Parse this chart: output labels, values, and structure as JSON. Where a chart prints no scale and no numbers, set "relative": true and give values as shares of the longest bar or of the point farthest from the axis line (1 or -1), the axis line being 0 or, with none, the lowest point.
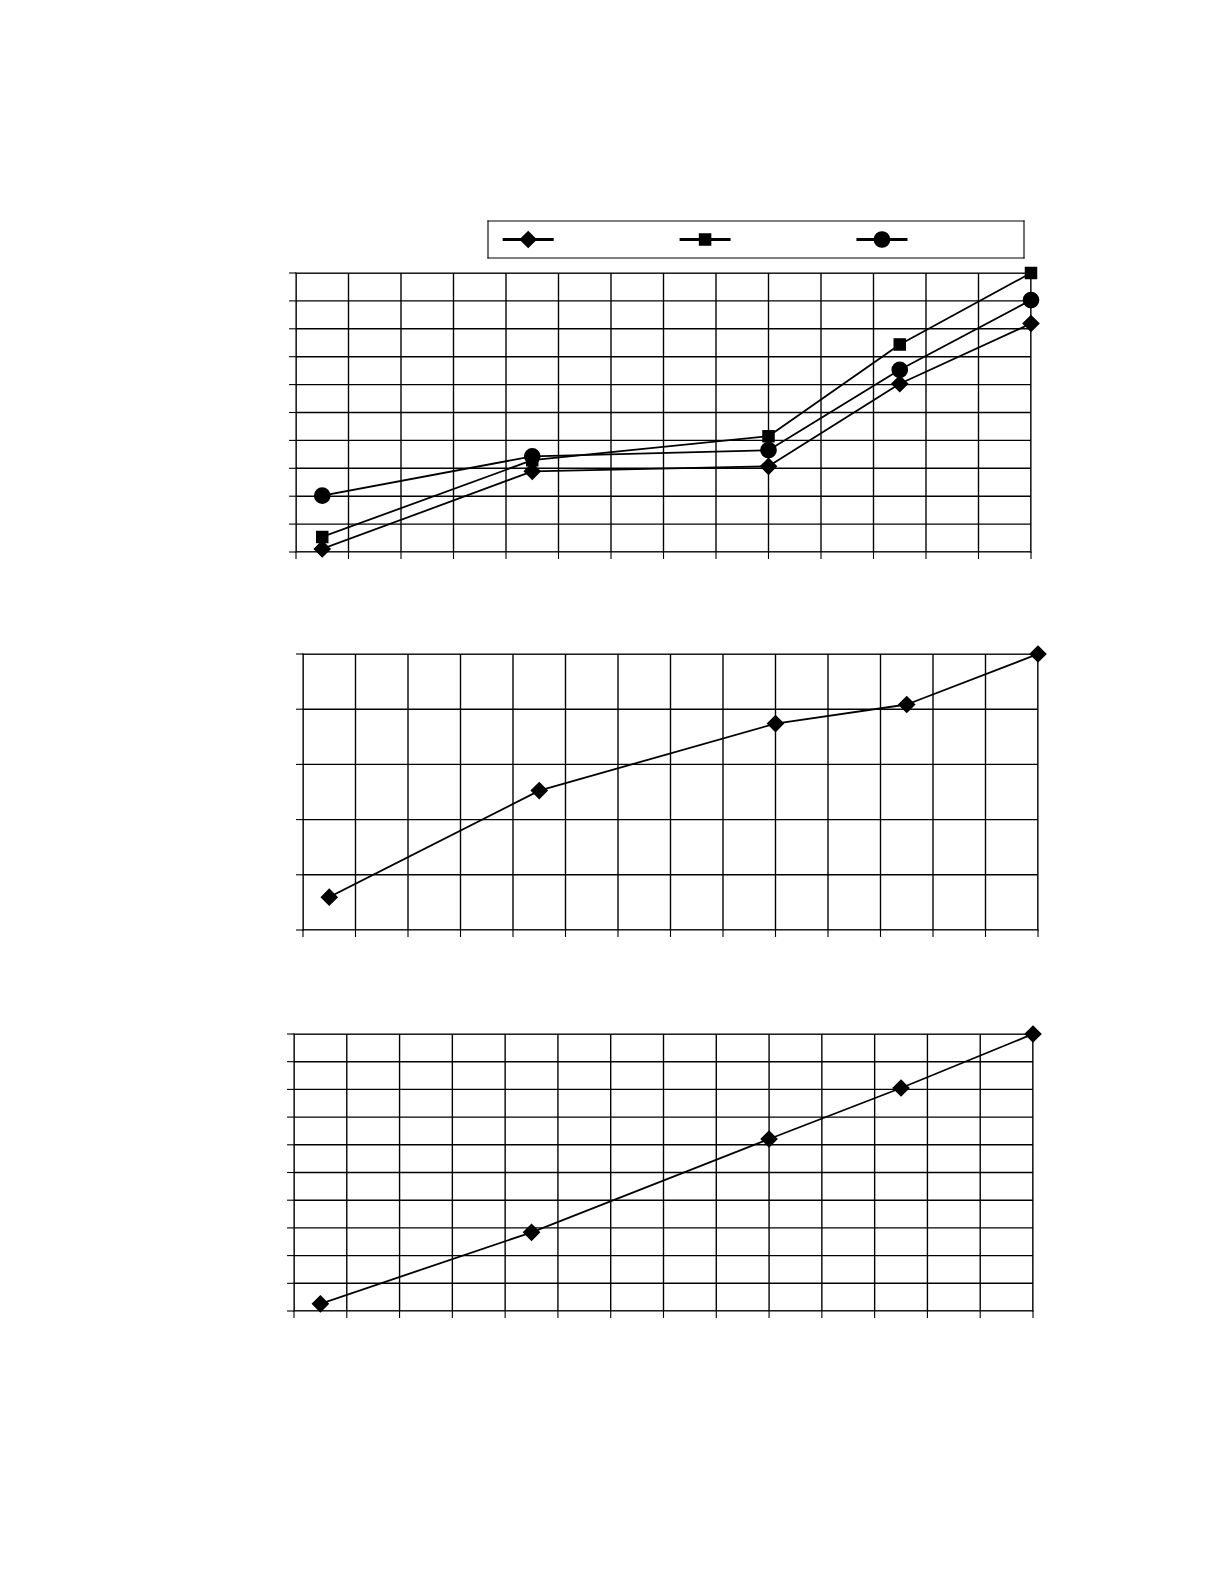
{
  "chart_data": [
    {
      "type": "line",
      "relative": true,
      "categories": [
        null,
        null,
        null,
        null,
        null,
        null,
        null,
        null,
        null,
        null,
        null,
        null,
        null,
        null,
        null,
        null,
        null,
        null,
        null,
        null,
        null,
        null,
        null,
        null,
        null,
        null,
        null,
        null,
        null
      ],
      "grid": true,
      "line_style": "solid",
      "series": [
        {
          "color": "#000000",
          "marker": "diamond",
          "values": [
            null,
            0.011,
            null,
            null,
            null,
            null,
            null,
            null,
            null,
            0.289,
            null,
            null,
            null,
            null,
            null,
            null,
            null,
            null,
            0.307,
            null,
            null,
            null,
            null,
            0.603,
            null,
            null,
            null,
            null,
            0.819
          ]
        },
        {
          "color": "#000000",
          "marker": "square",
          "values": [
            null,
            0.054,
            null,
            null,
            null,
            null,
            null,
            null,
            null,
            0.329,
            null,
            null,
            null,
            null,
            null,
            null,
            null,
            null,
            0.415,
            null,
            null,
            null,
            null,
            0.744,
            null,
            null,
            null,
            null,
            1.0
          ]
        },
        {
          "color": "#000000",
          "marker": "circle",
          "values": [
            null,
            0.202,
            null,
            null,
            null,
            null,
            null,
            null,
            null,
            0.343,
            null,
            null,
            null,
            null,
            null,
            null,
            null,
            null,
            0.365,
            null,
            null,
            null,
            null,
            0.653,
            null,
            null,
            null,
            null,
            0.903
          ]
        }
      ]
    },
    {
      "type": "line",
      "relative": true,
      "categories": [
        null,
        null,
        null,
        null,
        null,
        null,
        null,
        null,
        null,
        null,
        null,
        null,
        null,
        null,
        null,
        null,
        null,
        null,
        null,
        null,
        null,
        null,
        null,
        null,
        null,
        null,
        null,
        null,
        null
      ],
      "grid": true,
      "line_style": "solid",
      "marker": "diamond",
      "series": [
        {
          "color": "#000000",
          "values": [
            null,
            0.119,
            null,
            null,
            null,
            null,
            null,
            null,
            null,
            0.505,
            null,
            null,
            null,
            null,
            null,
            null,
            null,
            null,
            0.748,
            null,
            null,
            null,
            null,
            0.817,
            null,
            null,
            null,
            null,
            1.0
          ]
        }
      ]
    },
    {
      "type": "line",
      "relative": true,
      "categories": [
        null,
        null,
        null,
        null,
        null,
        null,
        null,
        null,
        null,
        null,
        null,
        null,
        null,
        null,
        null,
        null,
        null,
        null,
        null,
        null,
        null,
        null,
        null,
        null,
        null,
        null,
        null,
        null,
        null
      ],
      "grid": true,
      "line_style": "solid",
      "marker": "diamond",
      "series": [
        {
          "color": "#000000",
          "values": [
            null,
            0.026,
            null,
            null,
            null,
            null,
            null,
            null,
            null,
            0.284,
            null,
            null,
            null,
            null,
            null,
            null,
            null,
            null,
            0.621,
            null,
            null,
            null,
            null,
            0.805,
            null,
            null,
            null,
            null,
            1.0
          ]
        }
      ]
    }
  ]
}
